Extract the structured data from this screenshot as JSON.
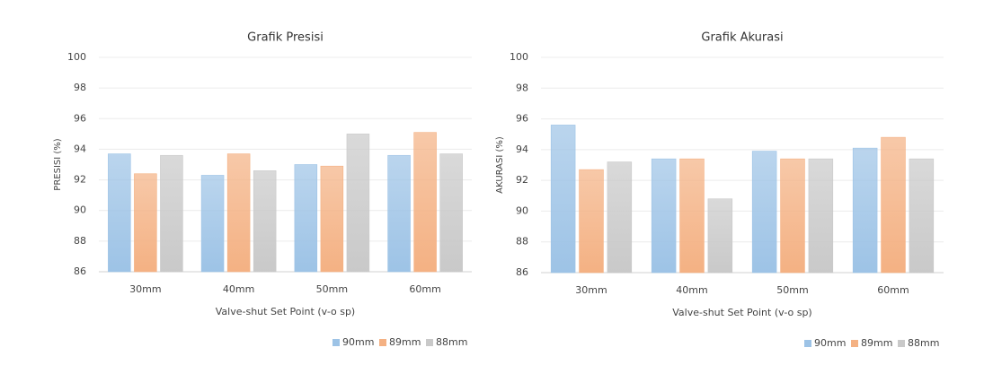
{
  "chart_data": [
    {
      "type": "bar",
      "title": "Grafik Presisi",
      "x_label": "Valve-shut Set Point (v-o sp)",
      "y_label": "PRESISI (%)",
      "categories": [
        "30mm",
        "40mm",
        "50mm",
        "60mm"
      ],
      "series": [
        {
          "name": "90mm",
          "color": "#9dc3e6",
          "values": [
            93.7,
            92.3,
            93.0,
            93.6
          ]
        },
        {
          "name": "89mm",
          "color": "#f4b183",
          "values": [
            92.4,
            93.7,
            92.9,
            95.1
          ]
        },
        {
          "name": "88mm",
          "color": "#c9c9c9",
          "values": [
            93.6,
            92.6,
            95.0,
            93.7
          ]
        }
      ],
      "ylim": [
        86,
        100
      ],
      "yticks": [
        86,
        88,
        90,
        92,
        94,
        96,
        98,
        100
      ],
      "grid": true,
      "legend": "bottom-right"
    },
    {
      "type": "bar",
      "title": "Grafik Akurasi",
      "x_label": "Valve-shut Set Point (v-o sp)",
      "y_label": "AKURASI (%)",
      "categories": [
        "30mm",
        "40mm",
        "50mm",
        "60mm"
      ],
      "series": [
        {
          "name": "90mm",
          "color": "#9dc3e6",
          "values": [
            95.6,
            93.4,
            93.9,
            94.1
          ]
        },
        {
          "name": "89mm",
          "color": "#f4b183",
          "values": [
            92.7,
            93.4,
            93.4,
            94.8
          ]
        },
        {
          "name": "88mm",
          "color": "#c9c9c9",
          "values": [
            93.2,
            90.8,
            93.4,
            93.4
          ]
        }
      ],
      "ylim": [
        86,
        100
      ],
      "yticks": [
        86,
        88,
        90,
        92,
        94,
        96,
        98,
        100
      ],
      "grid": true,
      "legend": "bottom-right"
    }
  ]
}
